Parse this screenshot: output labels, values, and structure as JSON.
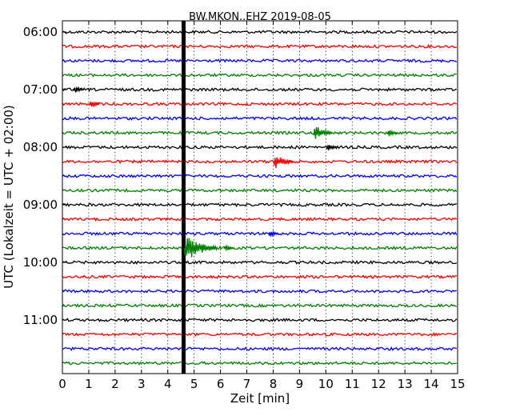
{
  "chart_data": {
    "type": "line",
    "plot_kind": "helicorder",
    "title": "BW.MKON..EHZ 2019-08-05",
    "xlabel": "Zeit  [min]",
    "ylabel": "UTC (Lokalzeit = UTC + 02:00)",
    "xlim": [
      0,
      15
    ],
    "x_ticks": [
      "0",
      "1",
      "2",
      "3",
      "4",
      "5",
      "6",
      "7",
      "8",
      "9",
      "10",
      "11",
      "12",
      "13",
      "14",
      "15"
    ],
    "y_tick_labels": [
      "06:00",
      "07:00",
      "08:00",
      "09:00",
      "10:00",
      "11:00"
    ],
    "trace_start_first": "06:00",
    "trace_interval_min": 15,
    "trace_count": 24,
    "trace_colors": [
      "#000000",
      "#ff0000",
      "#0000ff",
      "#008000"
    ],
    "grid": true,
    "grid_style": "dotted vertical",
    "events": [
      {
        "trace": 0,
        "minute": 4.6,
        "amplitude": "saturated"
      },
      {
        "trace": 4,
        "minute": 0.5,
        "amplitude": "small"
      },
      {
        "trace": 5,
        "minute": 1.1,
        "amplitude": "small"
      },
      {
        "trace": 7,
        "minute": 9.6,
        "amplitude": "medium"
      },
      {
        "trace": 7,
        "minute": 12.4,
        "amplitude": "small"
      },
      {
        "trace": 8,
        "minute": 10.1,
        "amplitude": "small"
      },
      {
        "trace": 9,
        "minute": 8.1,
        "amplitude": "medium"
      },
      {
        "trace": 14,
        "minute": 7.9,
        "amplitude": "small"
      },
      {
        "trace": 15,
        "minute": 4.7,
        "amplitude": "large"
      },
      {
        "trace": 15,
        "minute": 6.2,
        "amplitude": "small"
      }
    ]
  }
}
